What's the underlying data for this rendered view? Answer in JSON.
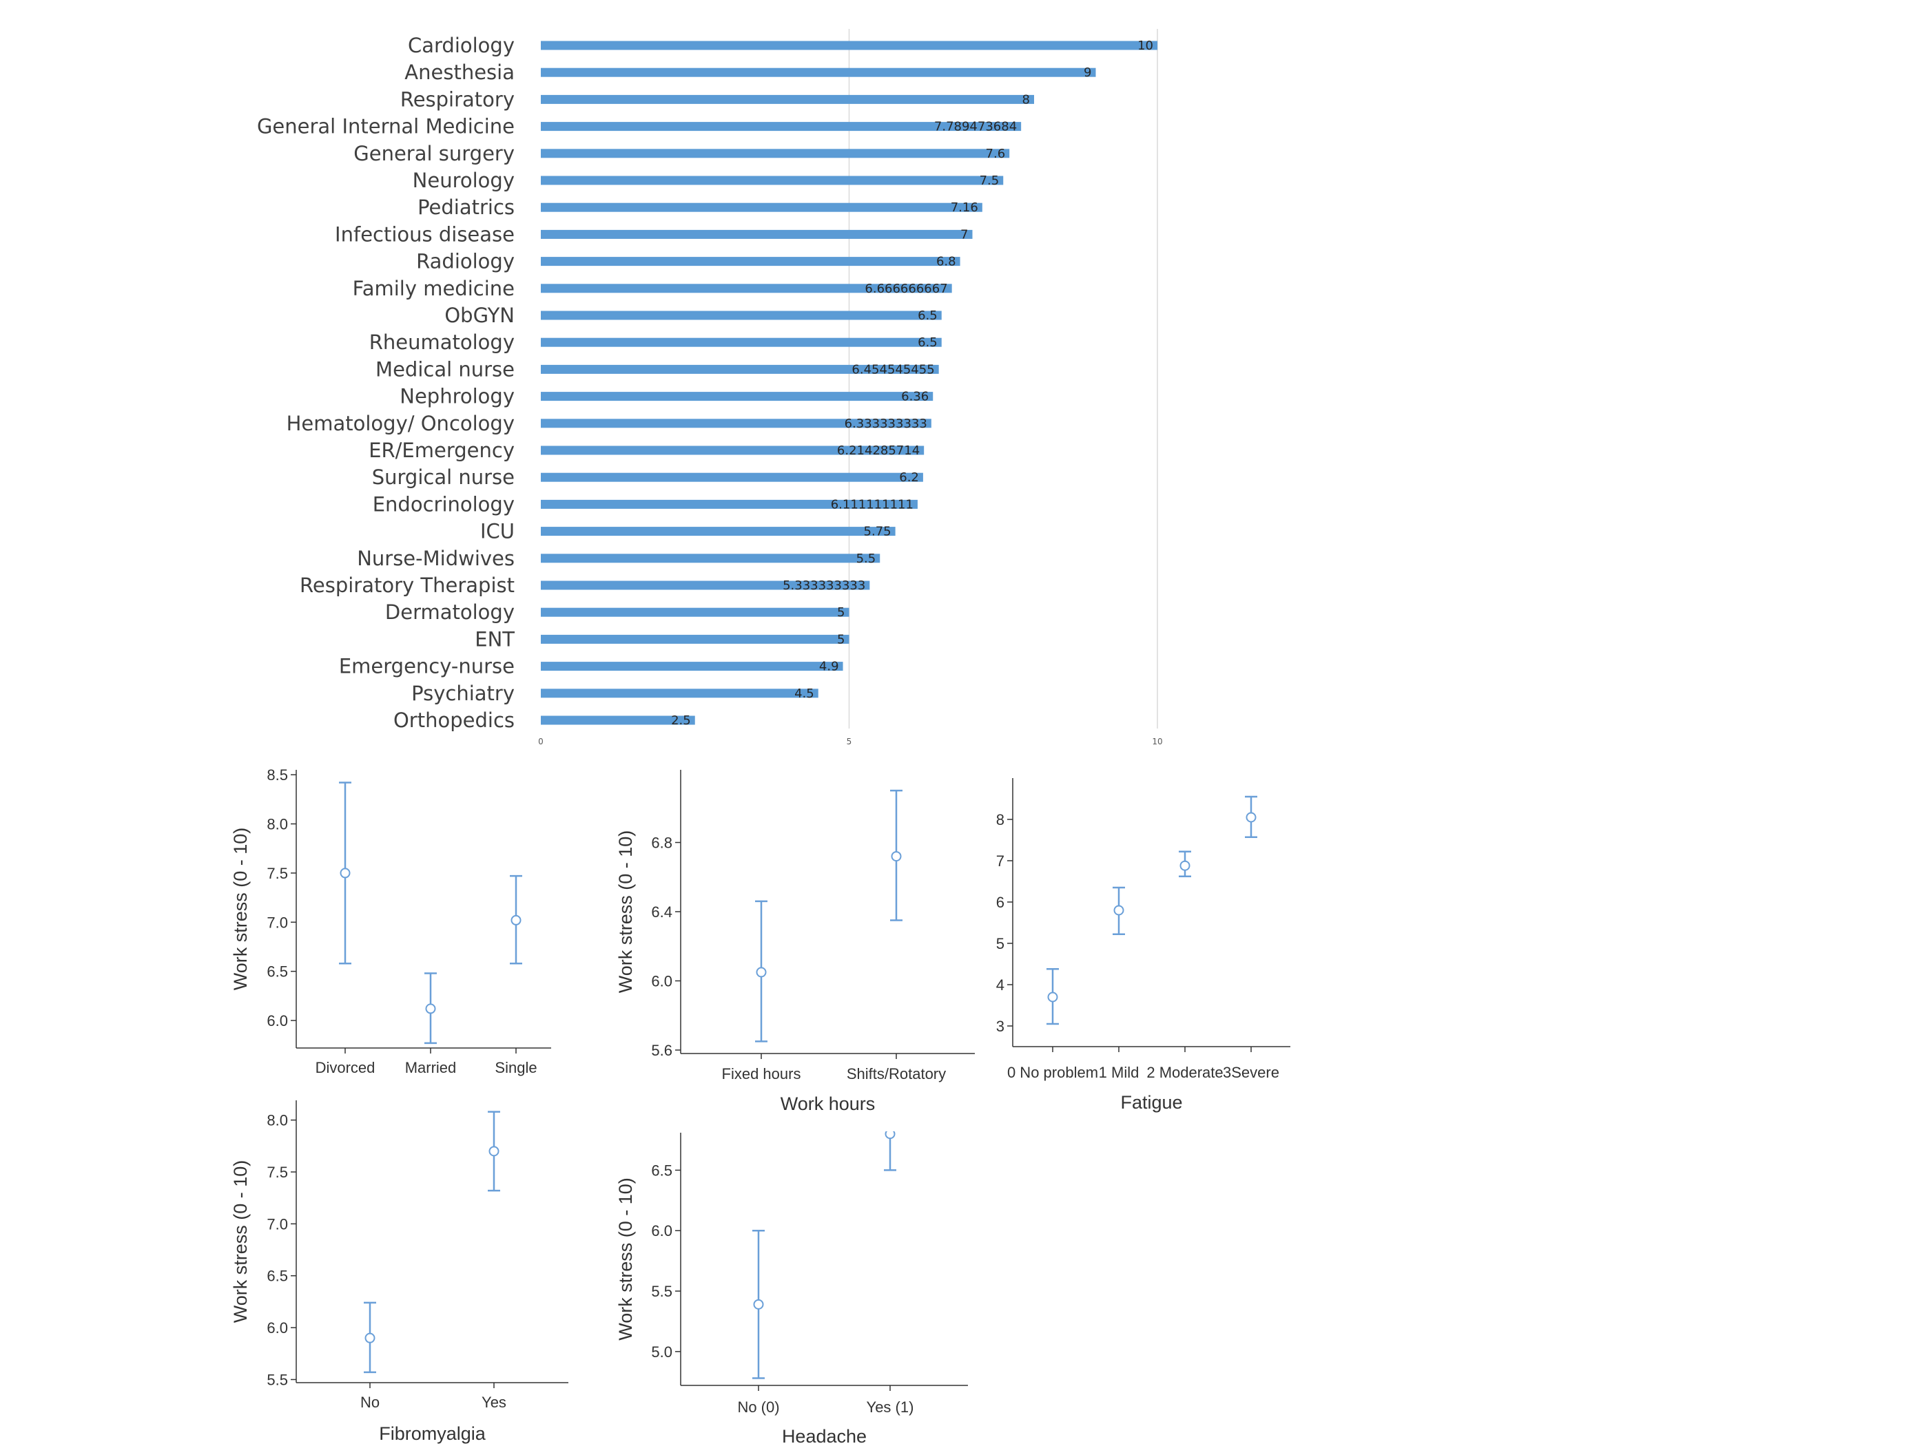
{
  "chart_data": [
    {
      "type": "bar",
      "orientation": "horizontal",
      "categories": [
        "Cardiology",
        "Anesthesia",
        "Respiratory",
        "General Internal Medicine",
        "General surgery",
        "Neurology",
        "Pediatrics",
        "Infectious disease",
        "Radiology",
        "Family medicine",
        "ObGYN",
        "Rheumatology",
        "Medical nurse",
        "Nephrology",
        "Hematology/ Oncology",
        "ER/Emergency",
        "Surgical nurse",
        "Endocrinology",
        "ICU",
        "Nurse-Midwives",
        "Respiratory Therapist",
        "Dermatology",
        "ENT",
        "Emergency-nurse",
        "Psychiatry",
        "Orthopedics"
      ],
      "values": [
        10,
        9,
        8,
        7.789473684,
        7.6,
        7.5,
        7.16,
        7,
        6.8,
        6.666666667,
        6.5,
        6.5,
        6.454545455,
        6.36,
        6.333333333,
        6.214285714,
        6.2,
        6.111111111,
        5.75,
        5.5,
        5.333333333,
        5,
        5,
        4.9,
        4.5,
        2.5
      ],
      "value_labels": [
        "10",
        "9",
        "8",
        "7.789473684",
        "7.6",
        "7.5",
        "7.16",
        "7",
        "6.8",
        "6.666666667",
        "6.5",
        "6.5",
        "6.454545455",
        "6.36",
        "6.333333333",
        "6.214285714",
        "6.2",
        "6.111111111",
        "5.75",
        "5.5",
        "5.333333333",
        "5",
        "5",
        "4.9",
        "4.5",
        "2.5"
      ],
      "xlim": [
        0,
        12
      ],
      "xticks": [
        "0",
        "5",
        "10"
      ],
      "xtick_values": [
        0,
        5,
        10
      ],
      "grid": true,
      "color": "#5b9bd5"
    },
    {
      "type": "errorbar",
      "categories": [
        "Divorced",
        "Married",
        "Single"
      ],
      "mean": [
        7.5,
        6.12,
        7.02
      ],
      "lower": [
        6.58,
        5.77,
        6.58
      ],
      "upper": [
        8.42,
        6.48,
        7.47
      ],
      "ylim": [
        5.72,
        8.55
      ],
      "yticks": [
        "8.5",
        "8.0",
        "7.5",
        "7.0",
        "6.5",
        "6.0"
      ],
      "ytick_values": [
        8.5,
        8.0,
        7.5,
        7.0,
        6.5,
        6.0
      ],
      "ylabel": "Work stress (0 - 10)",
      "xlabel": "",
      "color": "#6a9fd8"
    },
    {
      "type": "errorbar",
      "categories": [
        "Fixed hours",
        "Shifts/Rotatory"
      ],
      "mean": [
        6.05,
        6.72
      ],
      "lower": [
        5.65,
        6.35
      ],
      "upper": [
        6.46,
        7.1
      ],
      "ylim": [
        5.58,
        7.22
      ],
      "yticks": [
        "6.8",
        "6.4",
        "6.0",
        "5.6"
      ],
      "ytick_values": [
        6.8,
        6.4,
        6.0,
        5.6
      ],
      "ylabel": "Work stress (0 - 10)",
      "xlabel": "Work hours",
      "color": "#6a9fd8"
    },
    {
      "type": "errorbar",
      "categories": [
        "0 No problem",
        "1 Mild",
        "2 Moderate",
        "3Severe"
      ],
      "mean": [
        3.7,
        5.8,
        6.88,
        8.05
      ],
      "lower": [
        3.05,
        5.22,
        6.62,
        7.57
      ],
      "upper": [
        4.38,
        6.35,
        7.22,
        8.55
      ],
      "ylim": [
        2.5,
        9.0
      ],
      "yticks": [
        "8",
        "7",
        "6",
        "5",
        "4",
        "3"
      ],
      "ytick_values": [
        8,
        7,
        6,
        5,
        4,
        3
      ],
      "ylabel": "",
      "xlabel": "Fatigue",
      "color": "#6a9fd8"
    },
    {
      "type": "errorbar",
      "categories": [
        "No",
        "Yes"
      ],
      "mean": [
        5.9,
        7.7
      ],
      "lower": [
        5.57,
        7.32
      ],
      "upper": [
        6.24,
        8.08
      ],
      "ylim": [
        5.47,
        8.19
      ],
      "yticks": [
        "8.0",
        "7.5",
        "7.0",
        "6.5",
        "6.0",
        "5.5"
      ],
      "ytick_values": [
        8.0,
        7.5,
        7.0,
        6.5,
        6.0,
        5.5
      ],
      "ylabel": "Work stress (0 - 10)",
      "xlabel": "Fibromyalgia",
      "color": "#6a9fd8"
    },
    {
      "type": "errorbar",
      "categories": [
        "No (0)",
        "Yes (1)"
      ],
      "mean": [
        5.39,
        6.8
      ],
      "lower": [
        4.78,
        6.5
      ],
      "upper": [
        6.0,
        7.0
      ],
      "ylim": [
        4.72,
        6.81
      ],
      "yticks": [
        "6.5",
        "6.0",
        "5.5",
        "5.0"
      ],
      "ytick_values": [
        6.5,
        6.0,
        5.5,
        5.0
      ],
      "ylabel": "Work stress (0 - 10)",
      "xlabel": "Headache",
      "color": "#6a9fd8"
    }
  ]
}
